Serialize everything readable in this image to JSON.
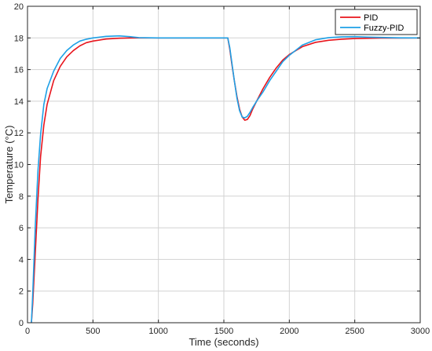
{
  "chart_data": {
    "type": "line",
    "title": "",
    "xlabel": "Time (seconds)",
    "ylabel": "Temperature (°C)",
    "xlim": [
      0,
      3000
    ],
    "ylim": [
      0,
      20
    ],
    "xticks": [
      0,
      500,
      1000,
      1500,
      2000,
      2500,
      3000
    ],
    "yticks": [
      0,
      2,
      4,
      6,
      8,
      10,
      12,
      14,
      16,
      18,
      20
    ],
    "xtick_labels": [
      "0",
      "500",
      "1000",
      "1500",
      "2000",
      "2500",
      "3000"
    ],
    "ytick_labels": [
      "0",
      "2",
      "4",
      "6",
      "8",
      "10",
      "12",
      "14",
      "16",
      "18",
      "20"
    ],
    "grid": true,
    "legend_position": "top-right",
    "series": [
      {
        "name": "PID",
        "color": "#e8141c",
        "points": [
          [
            30,
            0
          ],
          [
            40,
            1.2
          ],
          [
            60,
            4.5
          ],
          [
            80,
            7.8
          ],
          [
            100,
            10.5
          ],
          [
            125,
            12.5
          ],
          [
            150,
            13.8
          ],
          [
            200,
            15.3
          ],
          [
            250,
            16.2
          ],
          [
            300,
            16.8
          ],
          [
            350,
            17.2
          ],
          [
            400,
            17.5
          ],
          [
            450,
            17.7
          ],
          [
            500,
            17.8
          ],
          [
            600,
            17.93
          ],
          [
            700,
            17.98
          ],
          [
            800,
            18
          ],
          [
            1000,
            18
          ],
          [
            1200,
            18
          ],
          [
            1400,
            18
          ],
          [
            1530,
            18
          ],
          [
            1545,
            17.3
          ],
          [
            1560,
            16.4
          ],
          [
            1580,
            15.3
          ],
          [
            1600,
            14.3
          ],
          [
            1620,
            13.5
          ],
          [
            1640,
            13.0
          ],
          [
            1660,
            12.8
          ],
          [
            1680,
            12.85
          ],
          [
            1700,
            13.1
          ],
          [
            1720,
            13.5
          ],
          [
            1750,
            14.0
          ],
          [
            1800,
            14.8
          ],
          [
            1850,
            15.5
          ],
          [
            1900,
            16.1
          ],
          [
            1950,
            16.6
          ],
          [
            2000,
            16.95
          ],
          [
            2100,
            17.45
          ],
          [
            2200,
            17.72
          ],
          [
            2300,
            17.85
          ],
          [
            2400,
            17.92
          ],
          [
            2500,
            17.96
          ],
          [
            2700,
            17.99
          ],
          [
            3000,
            18
          ]
        ]
      },
      {
        "name": "Fuzzy-PID",
        "color": "#1ea0e6",
        "points": [
          [
            30,
            0
          ],
          [
            40,
            1.8
          ],
          [
            60,
            6.2
          ],
          [
            80,
            9.6
          ],
          [
            100,
            11.9
          ],
          [
            125,
            13.8
          ],
          [
            150,
            14.8
          ],
          [
            200,
            15.9
          ],
          [
            250,
            16.7
          ],
          [
            300,
            17.2
          ],
          [
            350,
            17.55
          ],
          [
            400,
            17.8
          ],
          [
            450,
            17.92
          ],
          [
            500,
            18.0
          ],
          [
            600,
            18.1
          ],
          [
            700,
            18.13
          ],
          [
            780,
            18.08
          ],
          [
            850,
            18.02
          ],
          [
            1000,
            18
          ],
          [
            1200,
            18
          ],
          [
            1400,
            18
          ],
          [
            1530,
            18
          ],
          [
            1545,
            17.4
          ],
          [
            1560,
            16.5
          ],
          [
            1580,
            15.3
          ],
          [
            1600,
            14.2
          ],
          [
            1620,
            13.4
          ],
          [
            1640,
            13.0
          ],
          [
            1660,
            12.95
          ],
          [
            1680,
            13.05
          ],
          [
            1700,
            13.3
          ],
          [
            1720,
            13.6
          ],
          [
            1750,
            14.0
          ],
          [
            1800,
            14.6
          ],
          [
            1850,
            15.3
          ],
          [
            1900,
            15.9
          ],
          [
            1950,
            16.5
          ],
          [
            2000,
            16.9
          ],
          [
            2100,
            17.55
          ],
          [
            2200,
            17.88
          ],
          [
            2300,
            18.02
          ],
          [
            2400,
            18.07
          ],
          [
            2500,
            18.08
          ],
          [
            2600,
            18.05
          ],
          [
            2800,
            18.01
          ],
          [
            3000,
            18
          ]
        ]
      }
    ]
  }
}
